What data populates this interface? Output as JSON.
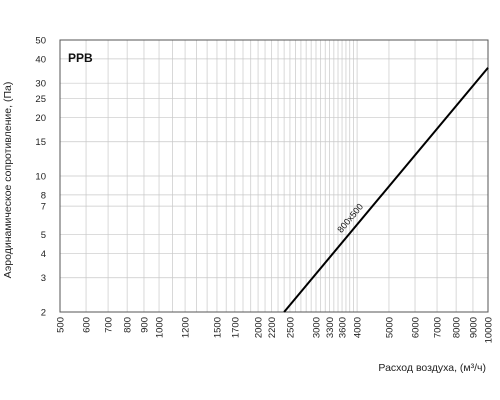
{
  "chart_data": {
    "type": "line",
    "x_scale": "log",
    "y_scale": "log",
    "xlim": [
      500,
      10000
    ],
    "ylim": [
      2,
      50
    ],
    "grid": true,
    "badge": "PPB",
    "xlabel": "Расход воздуха, (м³/ч)",
    "ylabel": "Аэродинамическое сопротивление, (Па)",
    "x_ticks": [
      500,
      600,
      700,
      800,
      900,
      1000,
      1200,
      1500,
      1700,
      2000,
      2200,
      2500,
      3000,
      3300,
      3600,
      4000,
      5000,
      6000,
      7000,
      8000,
      9000,
      10000
    ],
    "y_ticks": [
      2,
      3,
      4,
      5,
      7,
      8,
      10,
      15,
      20,
      25,
      30,
      40,
      50
    ],
    "x_minor_grid": [
      1100,
      1300,
      1400,
      1600,
      1800,
      1900,
      2100,
      2300,
      2400,
      2600,
      2700,
      2800,
      2900,
      3100,
      3200,
      3400,
      3500,
      3700,
      3800,
      3900
    ],
    "series": [
      {
        "name": "800x500",
        "color": "#000000",
        "points": [
          [
            2400,
            2
          ],
          [
            10000,
            36
          ]
        ]
      }
    ]
  }
}
